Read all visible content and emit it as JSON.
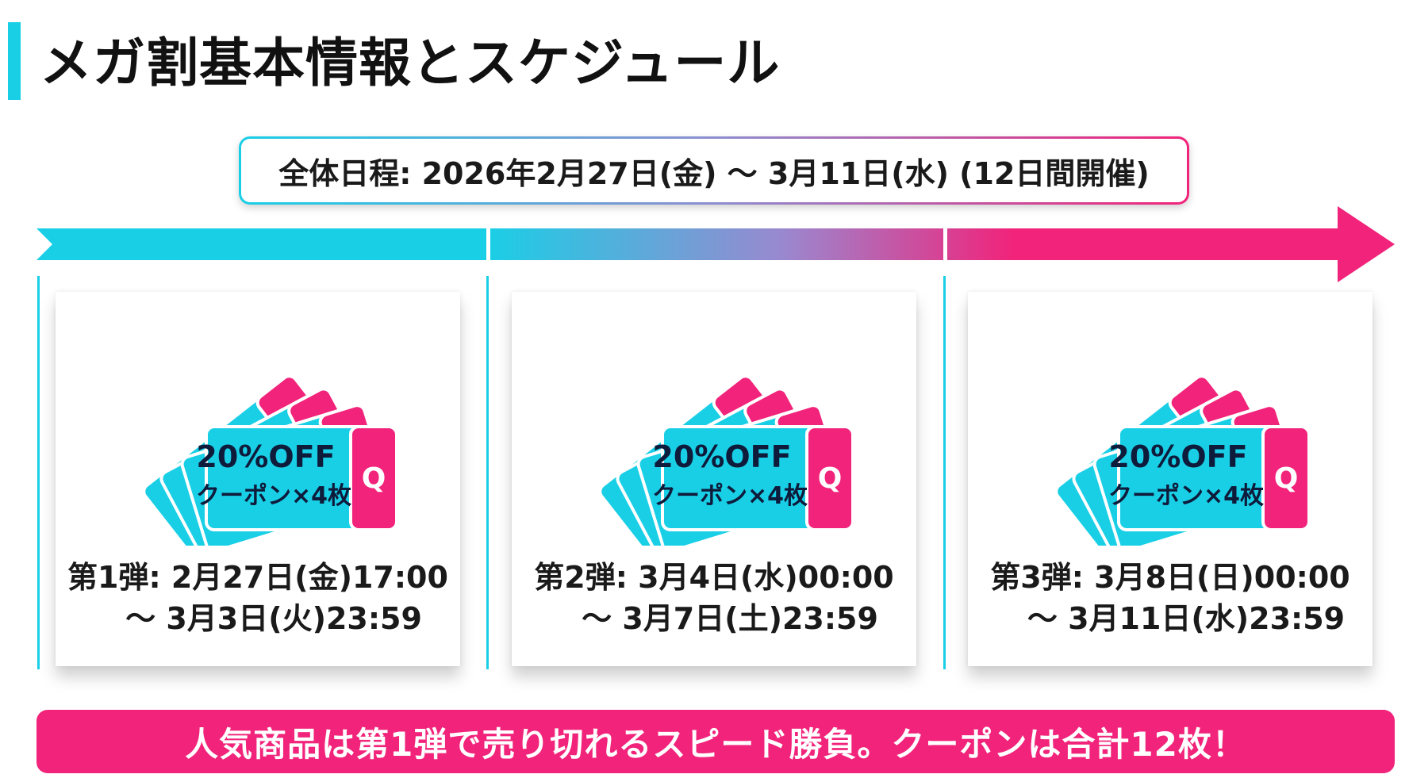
{
  "title": "メガ割基本情報とスケジュール",
  "overall_schedule": "全体日程: 2026年2月27日(金) 〜 3月11日(水) (12日間開催)",
  "colors": {
    "accent_cyan": "#19cfe6",
    "accent_pink": "#f1237a"
  },
  "phases": [
    {
      "coupon_line1": "20%OFF",
      "coupon_line2": "クーポン×4枚",
      "coupon_mark": "Q",
      "period_line1": "第1弾: 2月27日(金)17:00",
      "period_line2": "〜 3月3日(火)23:59"
    },
    {
      "coupon_line1": "20%OFF",
      "coupon_line2": "クーポン×4枚",
      "coupon_mark": "Q",
      "period_line1": "第2弾: 3月4日(水)00:00",
      "period_line2": "〜 3月7日(土)23:59"
    },
    {
      "coupon_line1": "20%OFF",
      "coupon_line2": "クーポン×4枚",
      "coupon_mark": "Q",
      "period_line1": "第3弾: 3月8日(日)00:00",
      "period_line2": "〜 3月11日(水)23:59"
    }
  ],
  "banner": "人気商品は第1弾で売り切れるスピード勝負。クーポンは合計12枚！"
}
